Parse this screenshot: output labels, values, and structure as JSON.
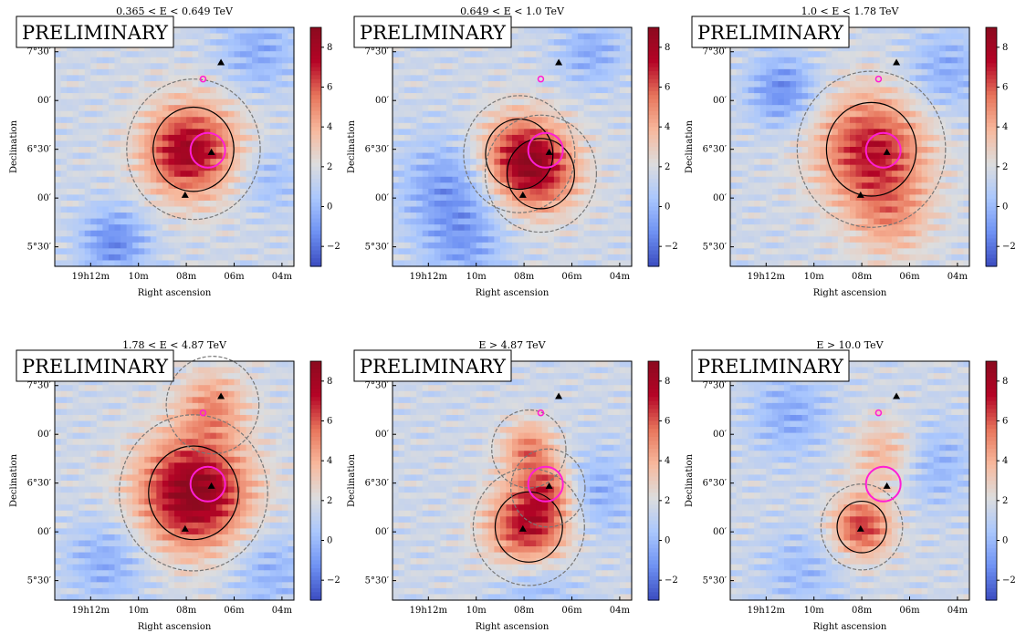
{
  "figure": {
    "watermark": "PRELIMINARY",
    "colormap": [
      "#3b4cc0",
      "#6f92f3",
      "#aac7fd",
      "#dddddd",
      "#f7b89c",
      "#e7745b",
      "#b40426",
      "#8b0a1f"
    ],
    "marker_circle_color": "#ff1ed5"
  },
  "chart_data": [
    {
      "type": "heatmap",
      "title": "0.365 < E < 0.649 TeV",
      "xlabel": "Right ascension",
      "ylabel": "Declination",
      "xticks": [
        "19h12m",
        "10m",
        "08m",
        "06m",
        "04m"
      ],
      "yticks": [
        "7°30′",
        "00′",
        "6°30′",
        "00′",
        "5°30′"
      ],
      "colorbar": {
        "min": -3,
        "max": 9,
        "ticks": [
          8,
          6,
          4,
          2,
          0,
          -2
        ]
      },
      "hotspots": [
        {
          "ra": 7.7,
          "dec": 6.5,
          "amp": 5.0,
          "sigma": 0.36
        },
        {
          "ra": 8.3,
          "dec": 6.45,
          "amp": 1.8,
          "sigma": 0.25
        }
      ],
      "cold_spots": [
        {
          "ra": 11.0,
          "dec": 5.55,
          "amp": -3.0,
          "sigma": 0.25
        },
        {
          "ra": 5.0,
          "dec": 7.5,
          "amp": -2.0,
          "sigma": 0.3
        },
        {
          "ra": 4.6,
          "dec": 6.2,
          "amp": -1.5,
          "sigma": 0.25
        }
      ],
      "triangles": [
        [
          6.95,
          6.47
        ],
        [
          8.05,
          6.03
        ],
        [
          6.55,
          7.39
        ]
      ],
      "markers": {
        "circle_large": [
          7.1,
          6.49
        ],
        "circle_small": [
          7.3,
          7.22
        ]
      }
    },
    {
      "type": "heatmap",
      "title": "0.649 < E < 1.0 TeV",
      "xlabel": "Right ascension",
      "ylabel": "Declination",
      "xticks": [
        "19h12m",
        "10m",
        "08m",
        "06m",
        "04m"
      ],
      "yticks": [
        "7°30′",
        "00′",
        "6°30′",
        "00′",
        "5°30′"
      ],
      "colorbar": {
        "min": -3,
        "max": 9,
        "ticks": [
          8,
          6,
          4,
          2,
          0,
          -2
        ]
      },
      "hotspots": [
        {
          "ra": 8.2,
          "dec": 6.45,
          "amp": 4.5,
          "sigma": 0.3
        },
        {
          "ra": 7.3,
          "dec": 6.25,
          "amp": 4.0,
          "sigma": 0.3
        }
      ],
      "cold_spots": [
        {
          "ra": 11.2,
          "dec": 6.1,
          "amp": -2.5,
          "sigma": 0.35
        },
        {
          "ra": 5.2,
          "dec": 7.5,
          "amp": -2.0,
          "sigma": 0.25
        },
        {
          "ra": 10.5,
          "dec": 5.5,
          "amp": -2.0,
          "sigma": 0.3
        }
      ],
      "triangles": [
        [
          6.95,
          6.47
        ],
        [
          8.05,
          6.03
        ],
        [
          6.55,
          7.39
        ]
      ],
      "markers": {
        "circle_large": [
          7.1,
          6.49
        ],
        "circle_small": [
          7.3,
          7.22
        ]
      }
    },
    {
      "type": "heatmap",
      "title": "1.0 < E < 1.78 TeV",
      "xlabel": "Right ascension",
      "ylabel": "Declination",
      "xticks": [
        "19h12m",
        "10m",
        "08m",
        "06m",
        "04m"
      ],
      "yticks": [
        "7°30′",
        "00′",
        "6°30′",
        "00′",
        "5°30′"
      ],
      "colorbar": {
        "min": -3,
        "max": 9,
        "ticks": [
          8,
          6,
          4,
          2,
          0,
          -2
        ]
      },
      "hotspots": [
        {
          "ra": 7.6,
          "dec": 6.5,
          "amp": 5.5,
          "sigma": 0.4
        },
        {
          "ra": 6.8,
          "dec": 5.8,
          "amp": 2.5,
          "sigma": 0.3
        }
      ],
      "cold_spots": [
        {
          "ra": 11.3,
          "dec": 7.1,
          "amp": -3.0,
          "sigma": 0.25
        },
        {
          "ra": 4.5,
          "dec": 7.3,
          "amp": -2.0,
          "sigma": 0.3
        }
      ],
      "triangles": [
        [
          6.95,
          6.47
        ],
        [
          8.05,
          6.03
        ],
        [
          6.55,
          7.39
        ]
      ],
      "markers": {
        "circle_large": [
          7.1,
          6.49
        ],
        "circle_small": [
          7.3,
          7.22
        ]
      }
    },
    {
      "type": "heatmap",
      "title": "1.78 < E < 4.87 TeV",
      "xlabel": "Right ascension",
      "ylabel": "Declination",
      "xticks": [
        "19h12m",
        "10m",
        "08m",
        "06m",
        "04m"
      ],
      "yticks": [
        "7°30′",
        "00′",
        "6°30′",
        "00′",
        "5°30′"
      ],
      "colorbar": {
        "min": -3,
        "max": 9,
        "ticks": [
          8,
          6,
          4,
          2,
          0,
          -2
        ]
      },
      "hotspots": [
        {
          "ra": 7.7,
          "dec": 6.4,
          "amp": 7.5,
          "sigma": 0.4
        },
        {
          "ra": 6.9,
          "dec": 7.3,
          "amp": 3.0,
          "sigma": 0.25
        }
      ],
      "cold_spots": [
        {
          "ra": 11.3,
          "dec": 5.7,
          "amp": -2.0,
          "sigma": 0.3
        },
        {
          "ra": 4.5,
          "dec": 5.6,
          "amp": -1.8,
          "sigma": 0.3
        }
      ],
      "triangles": [
        [
          6.95,
          6.47
        ],
        [
          8.05,
          6.03
        ],
        [
          6.55,
          7.39
        ]
      ],
      "markers": {
        "circle_large": [
          7.1,
          6.49
        ],
        "circle_small": [
          7.3,
          7.22
        ]
      }
    },
    {
      "type": "heatmap",
      "title": "E > 4.87 TeV",
      "xlabel": "Right ascension",
      "ylabel": "Declination",
      "xticks": [
        "19h12m",
        "10m",
        "08m",
        "06m",
        "04m"
      ],
      "yticks": [
        "7°30′",
        "00′",
        "6°30′",
        "00′",
        "5°30′"
      ],
      "colorbar": {
        "min": -3,
        "max": 9,
        "ticks": [
          8,
          6,
          4,
          2,
          0,
          -2
        ]
      },
      "hotspots": [
        {
          "ra": 7.8,
          "dec": 6.05,
          "amp": 6.0,
          "sigma": 0.3
        },
        {
          "ra": 7.8,
          "dec": 6.85,
          "amp": 3.5,
          "sigma": 0.2
        },
        {
          "ra": 7.0,
          "dec": 6.45,
          "amp": 3.0,
          "sigma": 0.2
        }
      ],
      "cold_spots": [
        {
          "ra": 5.0,
          "dec": 6.4,
          "amp": -2.0,
          "sigma": 0.3
        },
        {
          "ra": 7.5,
          "dec": 5.45,
          "amp": -1.8,
          "sigma": 0.3
        }
      ],
      "triangles": [
        [
          6.95,
          6.47
        ],
        [
          8.05,
          6.03
        ],
        [
          6.55,
          7.39
        ]
      ],
      "markers": {
        "circle_large": [
          7.1,
          6.49
        ],
        "circle_small": [
          7.3,
          7.22
        ]
      }
    },
    {
      "type": "heatmap",
      "title": "E > 10.0 TeV",
      "xlabel": "Right ascension",
      "ylabel": "Declination",
      "xticks": [
        "19h12m",
        "10m",
        "08m",
        "06m",
        "04m"
      ],
      "yticks": [
        "7°30′",
        "00′",
        "6°30′",
        "00′",
        "5°30′"
      ],
      "colorbar": {
        "min": -3,
        "max": 9,
        "ticks": [
          8,
          6,
          4,
          2,
          0,
          -2
        ]
      },
      "hotspots": [
        {
          "ra": 8.0,
          "dec": 6.05,
          "amp": 5.0,
          "sigma": 0.22
        },
        {
          "ra": 7.0,
          "dec": 6.8,
          "amp": 2.5,
          "sigma": 0.25
        }
      ],
      "cold_spots": [
        {
          "ra": 11.0,
          "dec": 7.2,
          "amp": -2.0,
          "sigma": 0.3
        },
        {
          "ra": 5.0,
          "dec": 6.7,
          "amp": -1.8,
          "sigma": 0.3
        },
        {
          "ra": 10.5,
          "dec": 5.6,
          "amp": -1.5,
          "sigma": 0.3
        }
      ],
      "triangles": [
        [
          6.95,
          6.47
        ],
        [
          8.05,
          6.03
        ],
        [
          6.55,
          7.39
        ]
      ],
      "markers": {
        "circle_large": [
          7.1,
          6.49
        ],
        "circle_small": [
          7.3,
          7.22
        ]
      }
    }
  ]
}
